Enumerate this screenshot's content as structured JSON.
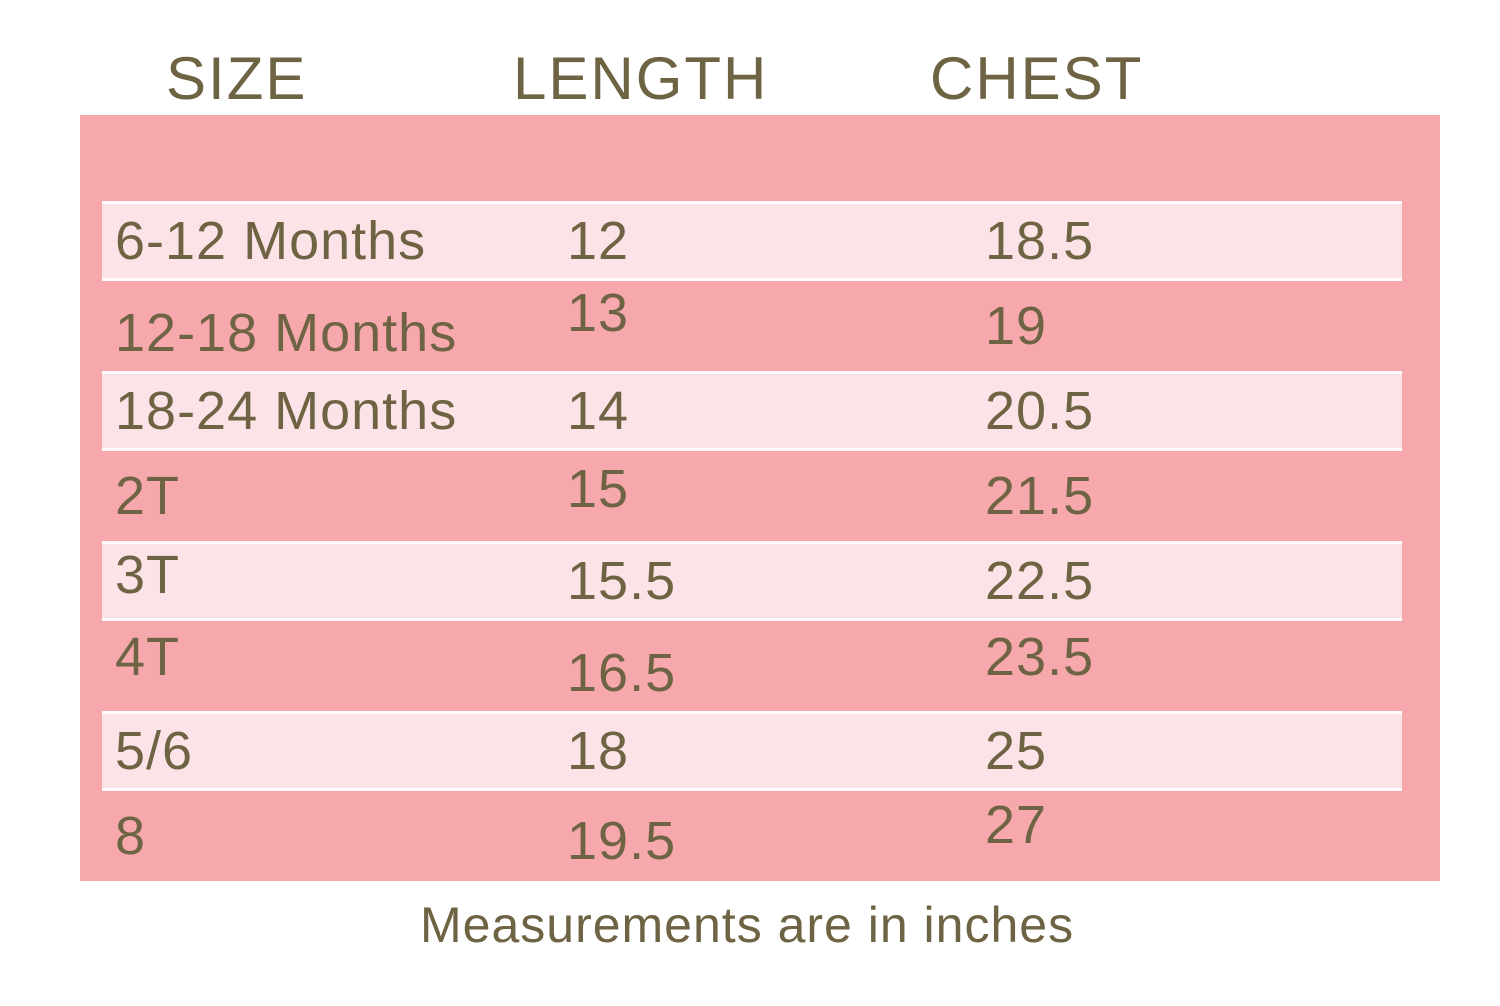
{
  "chart_data": {
    "type": "table",
    "columns": [
      "SIZE",
      "LENGTH",
      "CHEST"
    ],
    "rows": [
      {
        "size": "6-12 Months",
        "length": "12",
        "chest": "18.5"
      },
      {
        "size": "12-18 Months",
        "length": "13",
        "chest": "19"
      },
      {
        "size": "18-24 Months",
        "length": "14",
        "chest": "20.5"
      },
      {
        "size": "2T",
        "length": "15",
        "chest": "21.5"
      },
      {
        "size": "3T",
        "length": "15.5",
        "chest": "22.5"
      },
      {
        "size": "4T",
        "length": "16.5",
        "chest": "23.5"
      },
      {
        "size": "5/6",
        "length": "18",
        "chest": "25"
      },
      {
        "size": "8",
        "length": "19.5",
        "chest": "27"
      }
    ],
    "footnote": "Measurements are in inches",
    "units": "inches",
    "layout": "striped rows, alternating light stripe starting at first data row"
  },
  "colors": {
    "page_background": "#FFFFFF",
    "dark_pink_band": "#F6A8AD",
    "light_pink_stripe": "#FCE3E7",
    "stripe_separator": "#FFFFFF",
    "text_olive": "#6E6444"
  }
}
